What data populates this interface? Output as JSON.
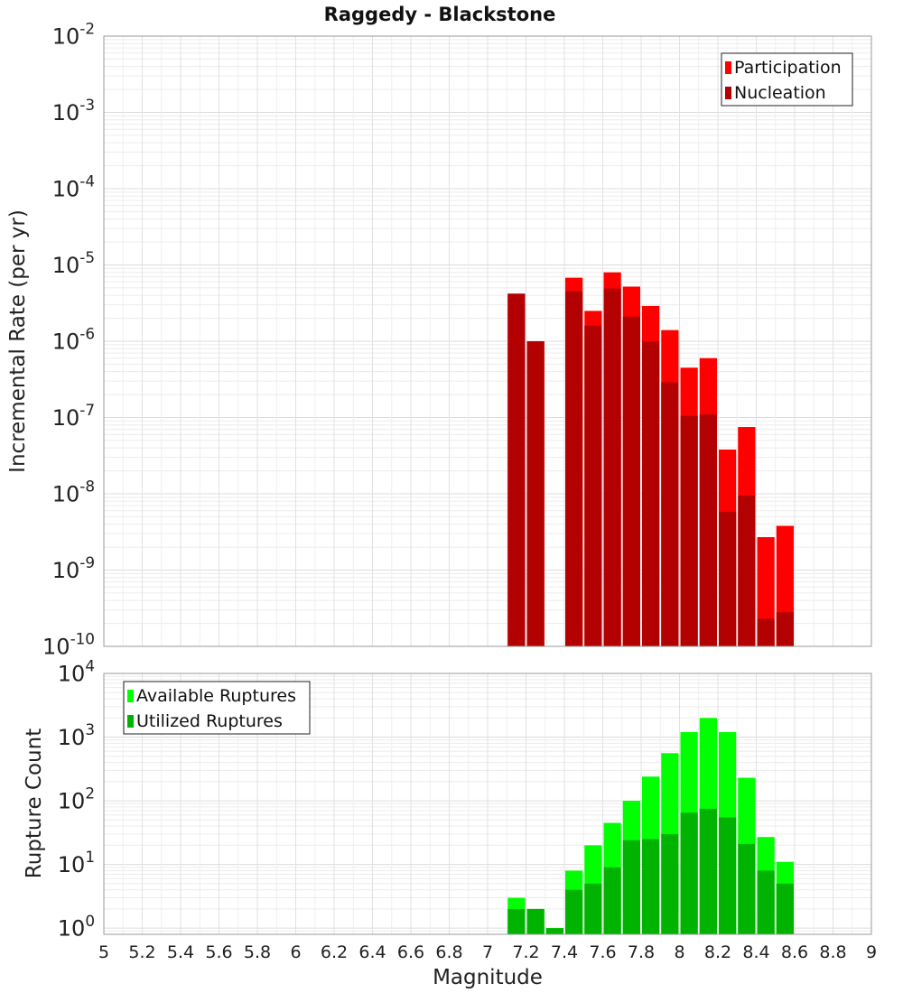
{
  "chart_data": [
    {
      "type": "bar",
      "title": "Raggedy - Blackstone",
      "xlabel": "",
      "ylabel": "Incremental Rate (per yr)",
      "yscale": "log",
      "ylim": [
        1e-10,
        0.01
      ],
      "xlim": [
        5,
        9
      ],
      "grid": true,
      "legend_position": "top-right",
      "y_ticks": [
        {
          "base": "10",
          "exp": "-10"
        },
        {
          "base": "10",
          "exp": "-9"
        },
        {
          "base": "10",
          "exp": "-8"
        },
        {
          "base": "10",
          "exp": "-7"
        },
        {
          "base": "10",
          "exp": "-6"
        },
        {
          "base": "10",
          "exp": "-5"
        },
        {
          "base": "10",
          "exp": "-4"
        },
        {
          "base": "10",
          "exp": "-3"
        },
        {
          "base": "10",
          "exp": "-2"
        }
      ],
      "x": [
        7.15,
        7.25,
        7.45,
        7.55,
        7.65,
        7.75,
        7.85,
        7.95,
        8.05,
        8.15,
        8.25,
        8.35,
        8.45,
        8.55
      ],
      "series": [
        {
          "name": "Participation",
          "color": "#ff0000",
          "values": [
            4.2e-06,
            1e-06,
            6.8e-06,
            2.5e-06,
            8e-06,
            5.2e-06,
            2.9e-06,
            1.4e-06,
            4.5e-07,
            6e-07,
            3.8e-08,
            7.5e-08,
            2.7e-09,
            3.8e-09
          ]
        },
        {
          "name": "Nucleation",
          "color": "#b30000",
          "values": [
            4.2e-06,
            1e-06,
            4.5e-06,
            1.6e-06,
            4.9e-06,
            2.1e-06,
            1e-06,
            2.9e-07,
            1.05e-07,
            1.1e-07,
            5.8e-09,
            9.5e-09,
            2.3e-10,
            2.8e-10
          ]
        }
      ]
    },
    {
      "type": "bar",
      "title": "",
      "xlabel": "Magnitude",
      "ylabel": "Rupture Count",
      "yscale": "log",
      "ylim": [
        0.8,
        10000.0
      ],
      "xlim": [
        5,
        9
      ],
      "grid": true,
      "legend_position": "top-left",
      "y_ticks": [
        {
          "base": "10",
          "exp": "0",
          "value": 1
        },
        {
          "base": "10",
          "exp": "1",
          "value": 10
        },
        {
          "base": "10",
          "exp": "2",
          "value": 100
        },
        {
          "base": "10",
          "exp": "3",
          "value": 1000
        },
        {
          "base": "10",
          "exp": "4",
          "value": 10000
        }
      ],
      "x_ticks": [
        "5",
        "5.2",
        "5.4",
        "5.6",
        "5.8",
        "6",
        "6.2",
        "6.4",
        "6.6",
        "6.8",
        "7",
        "7.2",
        "7.4",
        "7.6",
        "7.8",
        "8",
        "8.2",
        "8.4",
        "8.6",
        "8.8",
        "9"
      ],
      "x": [
        7.15,
        7.25,
        7.35,
        7.45,
        7.55,
        7.65,
        7.75,
        7.85,
        7.95,
        8.05,
        8.15,
        8.25,
        8.35,
        8.45,
        8.55
      ],
      "series": [
        {
          "name": "Available Ruptures",
          "color": "#00ff00",
          "values": [
            3,
            2,
            1,
            8,
            20,
            45,
            100,
            240,
            560,
            1200,
            2000,
            1200,
            230,
            27,
            11
          ]
        },
        {
          "name": "Utilized Ruptures",
          "color": "#00b300",
          "values": [
            2,
            2,
            1,
            4,
            5,
            9,
            24,
            25,
            30,
            65,
            75,
            55,
            21,
            8,
            5
          ]
        }
      ]
    }
  ]
}
